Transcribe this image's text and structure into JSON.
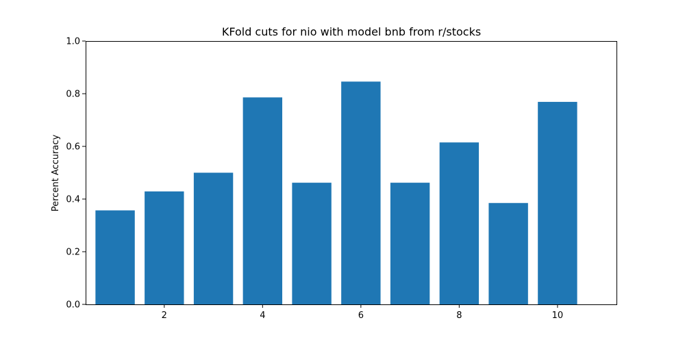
{
  "chart_data": {
    "type": "bar",
    "title": "KFold cuts for nio with model bnb from r/stocks",
    "xlabel": "",
    "ylabel": "Percent Accuracy",
    "x": [
      1,
      2,
      3,
      4,
      5,
      6,
      7,
      8,
      9,
      10
    ],
    "values": [
      0.357,
      0.429,
      0.5,
      0.786,
      0.462,
      0.846,
      0.462,
      0.615,
      0.385,
      0.769
    ],
    "xlim": [
      0.4,
      11.2
    ],
    "ylim": [
      0,
      1
    ],
    "xticks": [
      2,
      4,
      6,
      8,
      10
    ],
    "xtick_labels": [
      "2",
      "4",
      "6",
      "8",
      "10"
    ],
    "yticks": [
      0,
      0.2,
      0.4,
      0.6,
      0.8,
      1
    ],
    "ytick_labels": [
      "0.0",
      "0.2",
      "0.4",
      "0.6",
      "0.8",
      "1.0"
    ],
    "bar_width": 0.8,
    "bar_color": "#1f77b4",
    "grid": false,
    "legend": "none"
  }
}
